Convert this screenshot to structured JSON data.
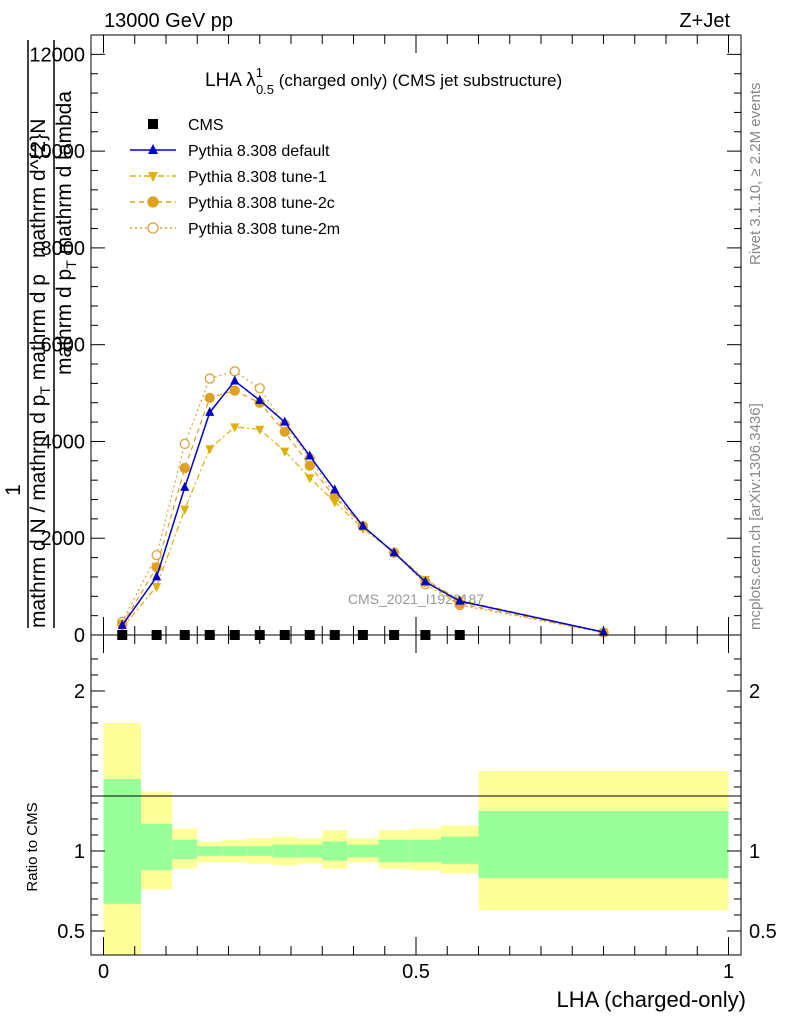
{
  "header": {
    "left": "13000 GeV pp",
    "right": "Z+Jet"
  },
  "side_text": {
    "rivet": "Rivet 3.1.10, ≥ 2.2M events",
    "mcplots": "mcplots.cern.ch [arXiv:1306.3436]"
  },
  "watermark": "CMS_2021_I1920187",
  "title": {
    "main": "LHA λ",
    "sup": "1",
    "sub": "0.5",
    "rest": " (charged only) (CMS jet substructure)"
  },
  "ylabel": {
    "num1": "1",
    "den1": "mathrm d N / mathrm d p",
    "den1_sub": "T",
    "den1_rest": " mathrm d p",
    "num2": "mathrm d^{2}N",
    "den2": "mathrm d p",
    "den2_rest": " mathrm d lambda"
  },
  "ratio_ylabel": "Ratio to CMS",
  "xlabel": "LHA (charged-only)",
  "legend": [
    {
      "name": "CMS",
      "color": "#000000"
    },
    {
      "name": "Pythia 8.308 default",
      "color": "#0000cc"
    },
    {
      "name": "Pythia 8.308 tune-1",
      "color": "#e0b000"
    },
    {
      "name": "Pythia 8.308 tune-2c",
      "color": "#e0a020"
    },
    {
      "name": "Pythia 8.308 tune-2m",
      "color": "#e0a040"
    }
  ],
  "chart_data": {
    "type": "line",
    "x_bin_edges": [
      0,
      0.06,
      0.11,
      0.15,
      0.19,
      0.23,
      0.27,
      0.31,
      0.35,
      0.39,
      0.44,
      0.49,
      0.54,
      0.6,
      1.0
    ],
    "x": [
      0.03,
      0.085,
      0.13,
      0.17,
      0.21,
      0.25,
      0.29,
      0.33,
      0.37,
      0.415,
      0.465,
      0.515,
      0.57,
      0.8
    ],
    "xlim": [
      -0.02,
      1.02
    ],
    "main_ylim": [
      0,
      12400
    ],
    "main_yticks": [
      0,
      2000,
      4000,
      6000,
      8000,
      10000,
      12000
    ],
    "main_ytick_labels": [
      "0",
      "2000",
      "4000",
      "6000",
      "8000",
      "10000",
      "12000"
    ],
    "series": [
      {
        "name": "CMS",
        "values": [
          0,
          0,
          0,
          0,
          0,
          0,
          0,
          0,
          0,
          0,
          0,
          0,
          0,
          0
        ]
      },
      {
        "name": "Pythia 8.308 default",
        "values": [
          200,
          1200,
          3050,
          4600,
          5250,
          4850,
          4400,
          3700,
          3000,
          2250,
          1700,
          1100,
          700,
          60
        ]
      },
      {
        "name": "Pythia 8.308 tune-1",
        "values": [
          150,
          1000,
          2600,
          3850,
          4300,
          4250,
          3800,
          3250,
          2750,
          2200,
          1700,
          1150,
          720,
          60
        ]
      },
      {
        "name": "Pythia 8.308 tune-2c",
        "values": [
          220,
          1400,
          3450,
          4900,
          5050,
          4800,
          4200,
          3500,
          2850,
          2250,
          1700,
          1100,
          650,
          55
        ]
      },
      {
        "name": "Pythia 8.308 tune-2m",
        "values": [
          270,
          1650,
          3950,
          5300,
          5450,
          5100,
          4350,
          3650,
          2900,
          2250,
          1700,
          1050,
          620,
          50
        ]
      }
    ],
    "ratio": {
      "ylim": [
        0.35,
        2.35
      ],
      "yticks": [
        0.5,
        1,
        2
      ],
      "ytick_labels": [
        "0.5",
        "1",
        "2"
      ],
      "bands": [
        {
          "x0": 0,
          "x1": 0.06,
          "inner": [
            0.67,
            1.45
          ],
          "outer": [
            0.35,
            1.8
          ]
        },
        {
          "x0": 0.06,
          "x1": 0.11,
          "inner": [
            0.88,
            1.17
          ],
          "outer": [
            0.76,
            1.37
          ]
        },
        {
          "x0": 0.11,
          "x1": 0.15,
          "inner": [
            0.95,
            1.07
          ],
          "outer": [
            0.89,
            1.14
          ]
        },
        {
          "x0": 0.15,
          "x1": 0.19,
          "inner": [
            0.97,
            1.03
          ],
          "outer": [
            0.93,
            1.06
          ]
        },
        {
          "x0": 0.19,
          "x1": 0.23,
          "inner": [
            0.97,
            1.03
          ],
          "outer": [
            0.93,
            1.07
          ]
        },
        {
          "x0": 0.23,
          "x1": 0.27,
          "inner": [
            0.97,
            1.03
          ],
          "outer": [
            0.92,
            1.08
          ]
        },
        {
          "x0": 0.27,
          "x1": 0.31,
          "inner": [
            0.96,
            1.04
          ],
          "outer": [
            0.91,
            1.09
          ]
        },
        {
          "x0": 0.31,
          "x1": 0.35,
          "inner": [
            0.96,
            1.04
          ],
          "outer": [
            0.92,
            1.08
          ]
        },
        {
          "x0": 0.35,
          "x1": 0.39,
          "inner": [
            0.94,
            1.06
          ],
          "outer": [
            0.89,
            1.13
          ]
        },
        {
          "x0": 0.39,
          "x1": 0.44,
          "inner": [
            0.96,
            1.04
          ],
          "outer": [
            0.93,
            1.08
          ]
        },
        {
          "x0": 0.44,
          "x1": 0.49,
          "inner": [
            0.93,
            1.07
          ],
          "outer": [
            0.89,
            1.13
          ]
        },
        {
          "x0": 0.49,
          "x1": 0.54,
          "inner": [
            0.93,
            1.07
          ],
          "outer": [
            0.88,
            1.14
          ]
        },
        {
          "x0": 0.54,
          "x1": 0.6,
          "inner": [
            0.92,
            1.09
          ],
          "outer": [
            0.86,
            1.16
          ]
        },
        {
          "x0": 0.6,
          "x1": 1.0,
          "inner": [
            0.83,
            1.25
          ],
          "outer": [
            0.63,
            1.5
          ]
        }
      ],
      "inner_color": "#99ff99",
      "outer_color": "#ffff99"
    },
    "xticks": [
      0,
      0.5,
      1
    ],
    "xtick_labels": [
      "0",
      "0.5",
      "1"
    ]
  }
}
